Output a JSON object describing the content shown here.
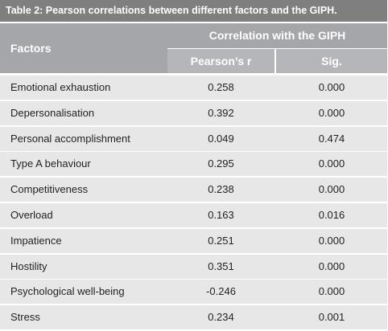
{
  "table": {
    "title": "Table 2: Pearson correlations between different factors and the GIPH.",
    "header": {
      "factors": "Factors",
      "group": "Correlation with the GIPH",
      "pearson": "Pearson’s r",
      "sig": "Sig."
    },
    "rows": [
      {
        "factor": "Emotional exhaustion",
        "r": "0.258",
        "sig": "0.000"
      },
      {
        "factor": "Depersonalisation",
        "r": "0.392",
        "sig": "0.000"
      },
      {
        "factor": "Personal accomplishment",
        "r": "0.049",
        "sig": "0.474"
      },
      {
        "factor": "Type A behaviour",
        "r": "0.295",
        "sig": "0.000"
      },
      {
        "factor": "Competitiveness",
        "r": "0.238",
        "sig": "0.000"
      },
      {
        "factor": "Overload",
        "r": "0.163",
        "sig": "0.016"
      },
      {
        "factor": "Impatience",
        "r": "0.251",
        "sig": "0.000"
      },
      {
        "factor": "Hostility",
        "r": "0.351",
        "sig": "0.000"
      },
      {
        "factor": "Psychological well-being",
        "r": "-0.246",
        "sig": "0.000"
      },
      {
        "factor": "Stress",
        "r": "0.234",
        "sig": "0.001"
      }
    ]
  }
}
